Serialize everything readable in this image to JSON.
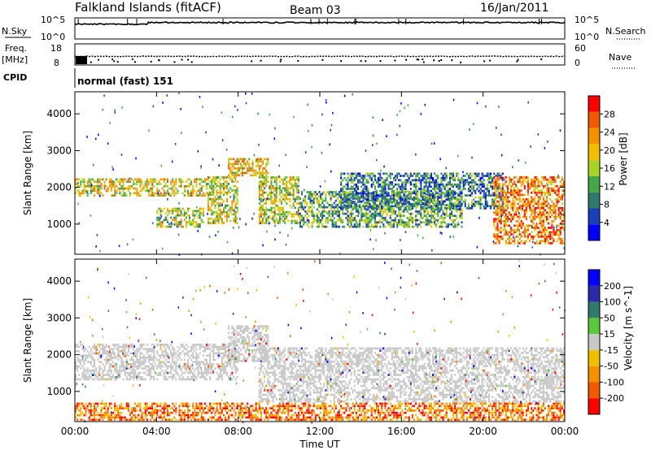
{
  "header": {
    "station": "Falkland Islands (fitACF)",
    "beam": "Beam 03",
    "date": "16/Jan/2011"
  },
  "noise_panel": {
    "left_label": "N.Sky",
    "right_label": "N.Search",
    "left_ticks": [
      "10^5",
      "10^0"
    ],
    "right_ticks": [
      "10^5",
      "10^0"
    ]
  },
  "freq_panel": {
    "left_label_line1": "Freq.",
    "left_label_line2": "[MHz]",
    "right_label": "Nave",
    "left_ticks": [
      "18",
      "8"
    ],
    "right_ticks": [
      "60",
      "0"
    ]
  },
  "cpid": {
    "label": "CPID",
    "value": "normal (fast) 151"
  },
  "colors": {
    "power_scale": [
      "#0000ff",
      "#1a3fb8",
      "#2f7a6a",
      "#44a84a",
      "#a8d428",
      "#f0c000",
      "#f59000",
      "#f05a00",
      "#ff0000"
    ],
    "velocity_scale": [
      "#0000ff",
      "#2a2aaa",
      "#2f7a6a",
      "#5ac83c",
      "#c8c8c8",
      "#f0c000",
      "#f59000",
      "#f05a00",
      "#ff0000"
    ],
    "ground_scatter": "#c8c8c8"
  },
  "chart_data": [
    {
      "type": "heatmap",
      "title": "",
      "xlabel": "Time UT",
      "ylabel": "Slant Range [km]",
      "xlim": [
        0,
        24
      ],
      "ylim": [
        180,
        4600
      ],
      "x_ticks": [
        "00:00",
        "04:00",
        "08:00",
        "12:00",
        "16:00",
        "20:00",
        "00:00"
      ],
      "y_ticks": [
        1000,
        2000,
        3000,
        4000
      ],
      "colorbar": {
        "label": "Power [dB]",
        "range": [
          0,
          32
        ],
        "ticks": [
          4,
          8,
          12,
          16,
          20,
          24,
          28
        ]
      },
      "echo_regions": [
        {
          "t0": 0.0,
          "t1": 6.5,
          "r0": 1750,
          "r1": 2250,
          "level": 18
        },
        {
          "t0": 6.5,
          "t1": 8.0,
          "r0": 1000,
          "r1": 2300,
          "level": 17
        },
        {
          "t0": 7.5,
          "t1": 9.5,
          "r0": 2300,
          "r1": 2800,
          "level": 20
        },
        {
          "t0": 4.0,
          "t1": 6.3,
          "r0": 900,
          "r1": 1450,
          "level": 16
        },
        {
          "t0": 9.0,
          "t1": 11.0,
          "r0": 1000,
          "r1": 2300,
          "level": 17
        },
        {
          "t0": 11.0,
          "t1": 19.0,
          "r0": 900,
          "r1": 1900,
          "level": 12
        },
        {
          "t0": 13.0,
          "t1": 21.0,
          "r0": 1400,
          "r1": 2400,
          "level": 9
        },
        {
          "t0": 20.5,
          "t1": 24.0,
          "r0": 450,
          "r1": 2300,
          "level": 24
        }
      ]
    },
    {
      "type": "heatmap",
      "title": "",
      "xlabel": "Time UT",
      "ylabel": "Slant Range [km]",
      "xlim": [
        0,
        24
      ],
      "ylim": [
        180,
        4600
      ],
      "x_ticks": [
        "00:00",
        "04:00",
        "08:00",
        "12:00",
        "16:00",
        "20:00",
        "00:00"
      ],
      "y_ticks": [
        1000,
        2000,
        3000,
        4000
      ],
      "colorbar": {
        "label": "Velocity [m s^-1]",
        "range": [
          -250,
          250
        ],
        "ticks": [
          200,
          100,
          50,
          15,
          -15,
          -50,
          -100,
          -200
        ]
      },
      "echo_regions": [
        {
          "t0": 0.0,
          "t1": 8.0,
          "r0": 1300,
          "r1": 2300,
          "level": 0
        },
        {
          "t0": 7.5,
          "t1": 9.5,
          "r0": 1800,
          "r1": 2800,
          "level": 0
        },
        {
          "t0": 9.0,
          "t1": 24.0,
          "r0": 700,
          "r1": 2200,
          "level": 0
        },
        {
          "t0": 0.0,
          "t1": 24.0,
          "r0": 200,
          "r1": 700,
          "level": -60
        }
      ]
    }
  ]
}
